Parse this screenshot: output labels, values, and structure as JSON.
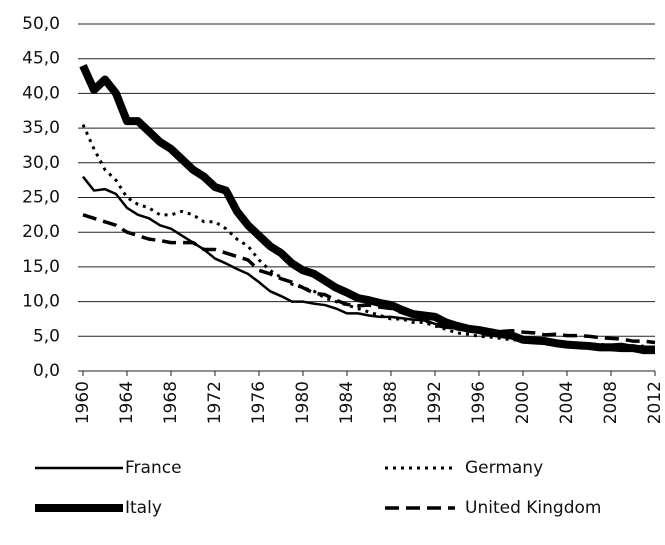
{
  "chart_data": {
    "type": "line",
    "x": [
      1960,
      1961,
      1962,
      1963,
      1964,
      1965,
      1966,
      1967,
      1968,
      1969,
      1970,
      1971,
      1972,
      1973,
      1974,
      1975,
      1976,
      1977,
      1978,
      1979,
      1980,
      1981,
      1982,
      1983,
      1984,
      1985,
      1986,
      1987,
      1988,
      1989,
      1990,
      1991,
      1992,
      1993,
      1994,
      1995,
      1996,
      1997,
      1998,
      1999,
      2000,
      2001,
      2002,
      2003,
      2004,
      2005,
      2006,
      2007,
      2008,
      2009,
      2010,
      2011,
      2012
    ],
    "xlim": [
      1960,
      2012
    ],
    "xticks": [
      1960,
      1964,
      1968,
      1972,
      1976,
      1980,
      1984,
      1988,
      1992,
      1996,
      2000,
      2004,
      2008,
      2012
    ],
    "ylim": [
      0,
      50
    ],
    "yticks": [
      {
        "value": 0,
        "label": "0,0"
      },
      {
        "value": 5,
        "label": "5,0"
      },
      {
        "value": 10,
        "label": "10,0"
      },
      {
        "value": 15,
        "label": "15,0"
      },
      {
        "value": 20,
        "label": "20,0"
      },
      {
        "value": 25,
        "label": "25,0"
      },
      {
        "value": 30,
        "label": "30,0"
      },
      {
        "value": 35,
        "label": "35,0"
      },
      {
        "value": 40,
        "label": "40,0"
      },
      {
        "value": 45,
        "label": "45,0"
      },
      {
        "value": 50,
        "label": "50,0"
      }
    ],
    "grid": true,
    "legend": "bottom",
    "series": [
      {
        "name": "France",
        "color": "#000000",
        "dash": "solid",
        "width": 2.5,
        "values": [
          28,
          26,
          26.2,
          25.5,
          23.5,
          22.5,
          22,
          21,
          20.5,
          19.5,
          18.5,
          17.5,
          16.2,
          15.5,
          14.7,
          14,
          12.8,
          11.5,
          10.8,
          10,
          10,
          9.7,
          9.5,
          9,
          8.3,
          8.3,
          8,
          7.8,
          7.8,
          7.6,
          7.4,
          7.3,
          6.8,
          6.5,
          6,
          5.8,
          5.5,
          5.1,
          5,
          4.8,
          4.4,
          4.5,
          4.2,
          4,
          4,
          3.8,
          3.8,
          3.8,
          3.8,
          3.9,
          3.6,
          3.5,
          3.5
        ]
      },
      {
        "name": "Germany",
        "color": "#000000",
        "dash": "dotted",
        "width": 3,
        "values": [
          35.5,
          32,
          29,
          27.5,
          25,
          24,
          23.5,
          22.5,
          22.5,
          23,
          22.5,
          21.5,
          21.5,
          20.5,
          19,
          18,
          16,
          14.5,
          13.5,
          12.5,
          12,
          11.5,
          10.5,
          10,
          9.5,
          9,
          8.5,
          8,
          7.5,
          7.5,
          7,
          7,
          6.5,
          6,
          5.5,
          5.3,
          5,
          4.9,
          4.7,
          4.5,
          4.4,
          4.3,
          4.2,
          4.2,
          4.1,
          3.9,
          3.8,
          3.9,
          3.5,
          3.5,
          3.4,
          3.6,
          3.3
        ]
      },
      {
        "name": "Italy",
        "color": "#000000",
        "dash": "solid",
        "width": 8,
        "values": [
          44,
          40.5,
          42,
          40,
          36,
          36,
          34.5,
          33,
          32,
          30.5,
          29,
          28,
          26.5,
          26,
          23,
          21,
          19.5,
          18,
          17,
          15.5,
          14.5,
          14,
          13,
          12,
          11.3,
          10.5,
          10.2,
          9.8,
          9.5,
          8.8,
          8.2,
          8,
          7.8,
          7,
          6.5,
          6.1,
          5.9,
          5.6,
          5.3,
          5.1,
          4.5,
          4.4,
          4.3,
          4,
          3.8,
          3.7,
          3.6,
          3.4,
          3.4,
          3.3,
          3.3,
          3,
          3
        ]
      },
      {
        "name": "United Kingdom",
        "color": "#000000",
        "dash": "dashed",
        "width": 3.5,
        "values": [
          22.5,
          22,
          21.5,
          21,
          20,
          19.5,
          19,
          18.8,
          18.5,
          18.5,
          18.5,
          17.5,
          17.5,
          17,
          16.5,
          16,
          14.5,
          14,
          13.3,
          12.8,
          12,
          11.2,
          11,
          10.2,
          9.6,
          9.4,
          9.5,
          9.2,
          9,
          8.4,
          7.9,
          7.4,
          6.6,
          6.3,
          6.2,
          6.2,
          6.1,
          5.9,
          5.7,
          5.8,
          5.6,
          5.5,
          5.2,
          5.3,
          5.1,
          5.1,
          5,
          4.8,
          4.7,
          4.6,
          4.3,
          4.3,
          4.1
        ]
      }
    ]
  }
}
